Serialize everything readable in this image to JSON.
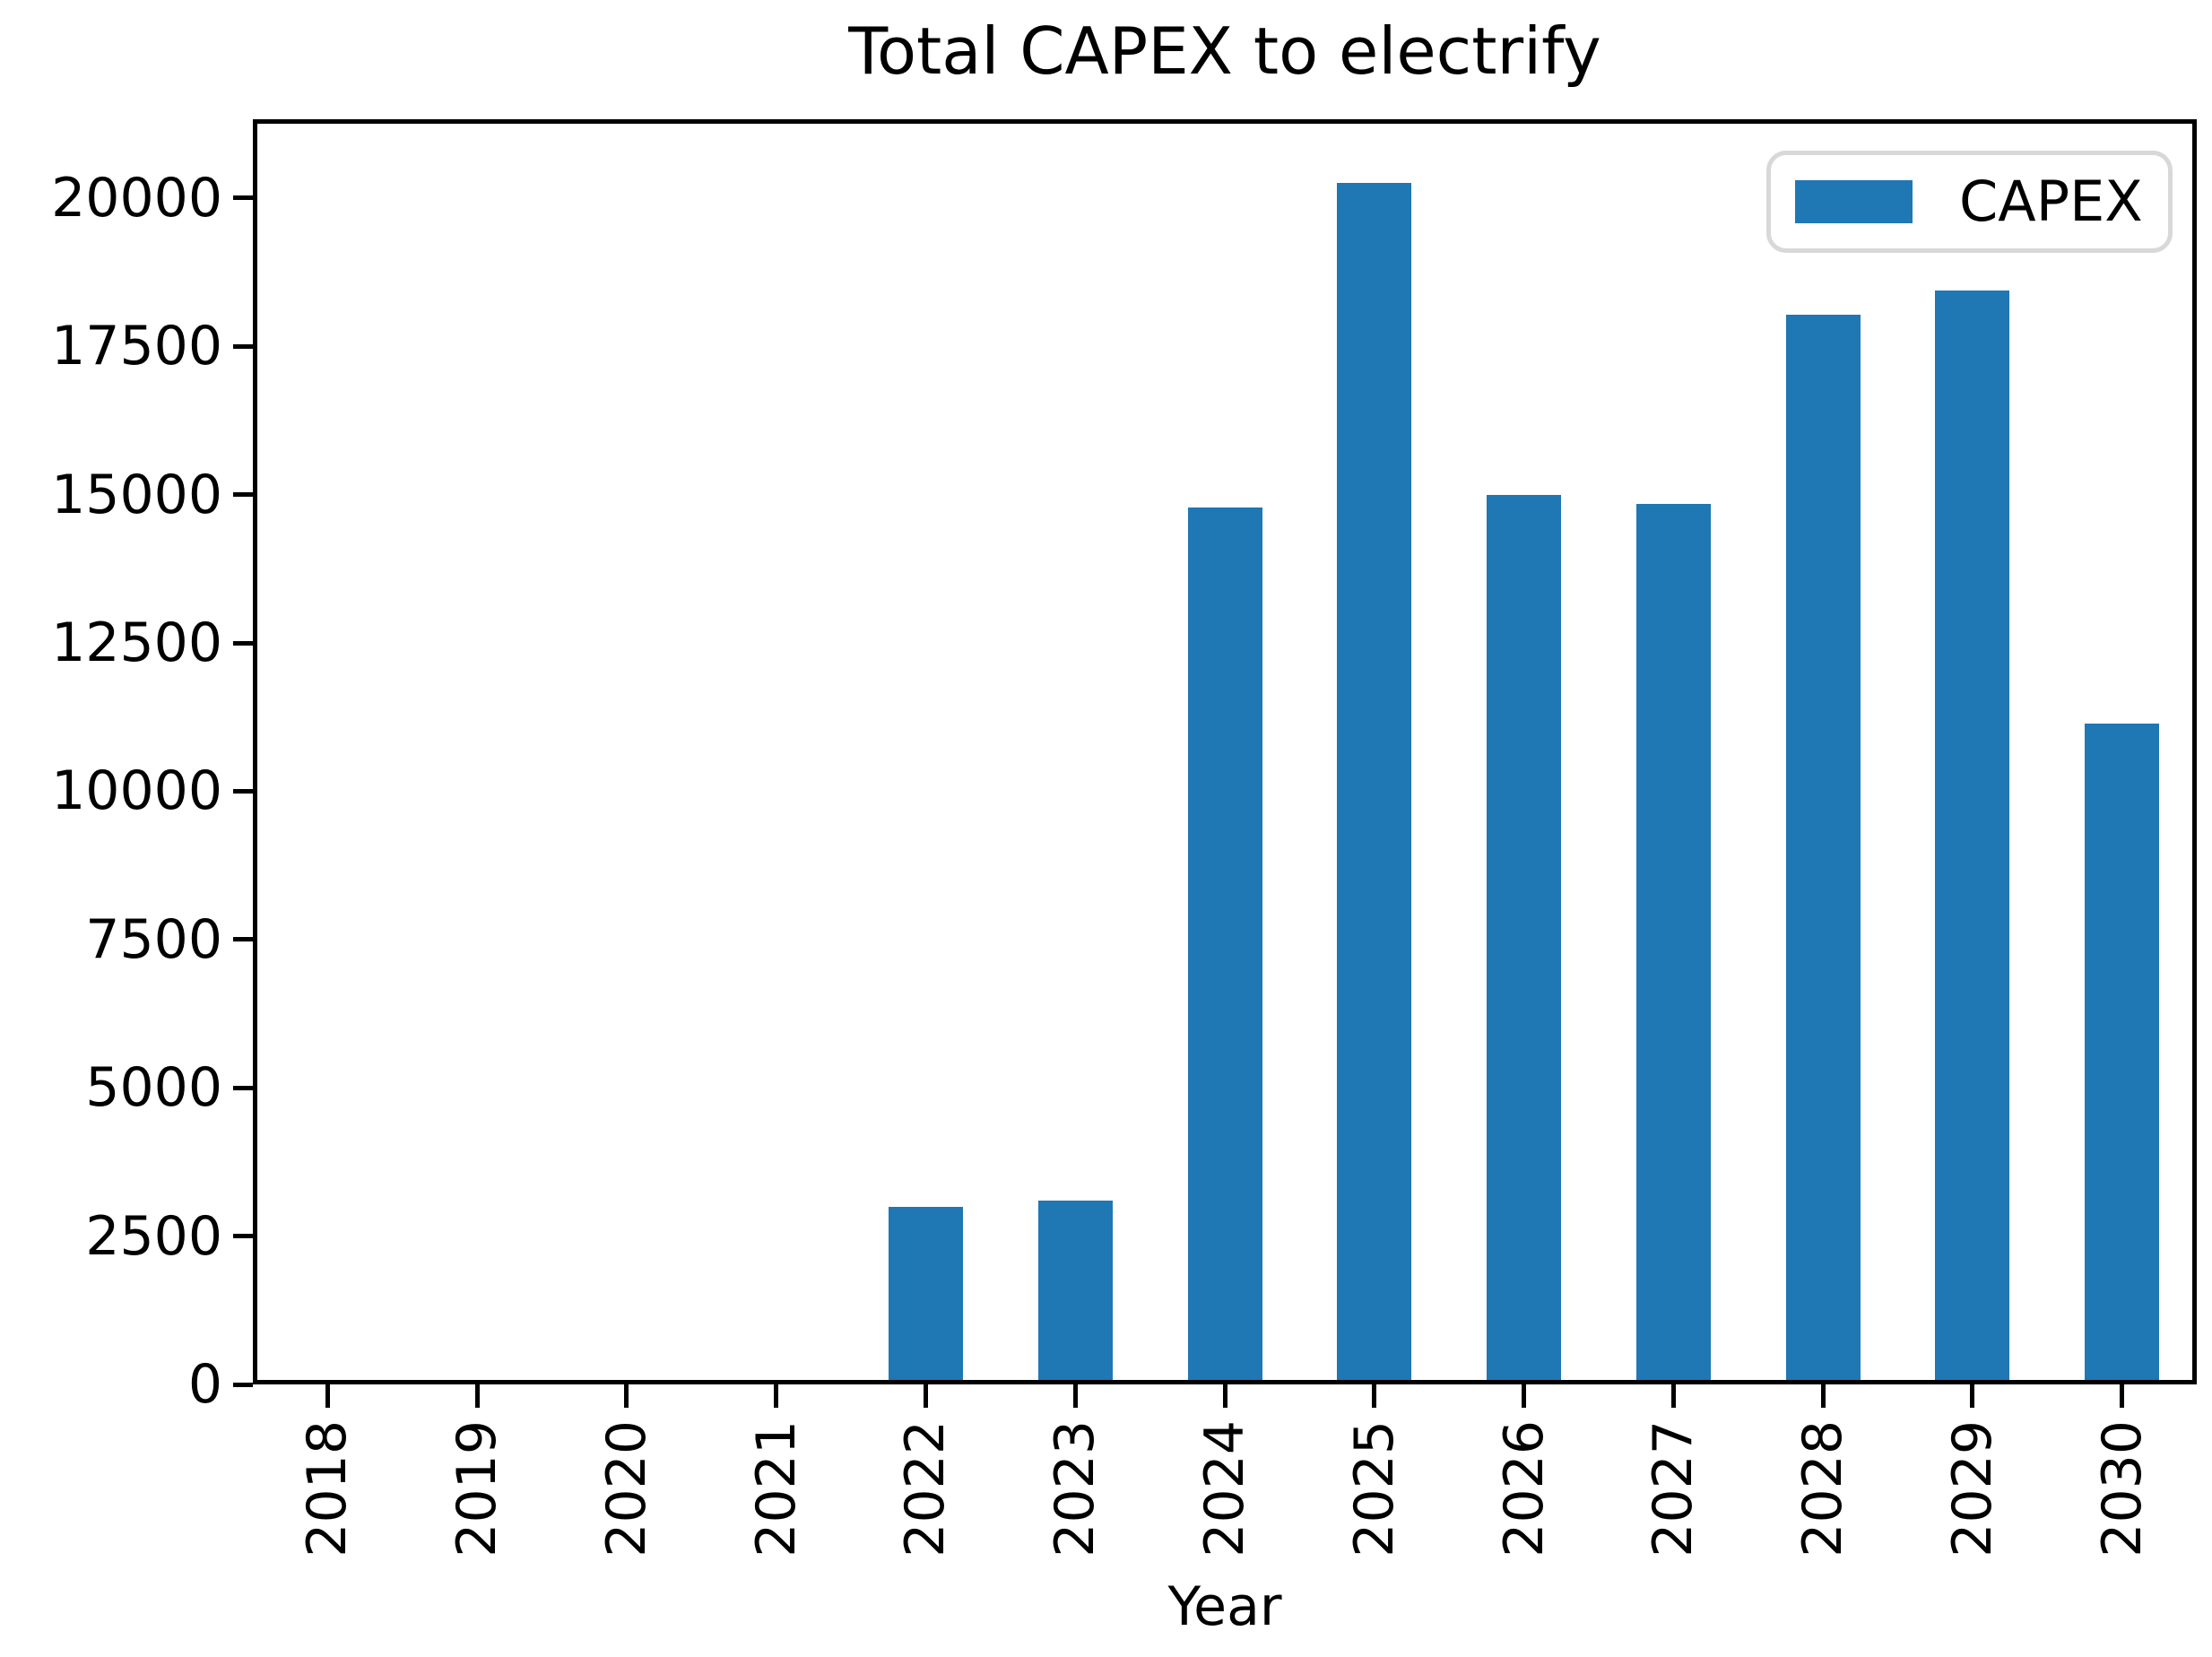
{
  "figure": {
    "background": "#ffffff"
  },
  "chart_data": {
    "type": "bar",
    "title": "Total CAPEX to electrify",
    "xlabel": "Year",
    "ylabel": "",
    "categories": [
      "2018",
      "2019",
      "2020",
      "2021",
      "2022",
      "2023",
      "2024",
      "2025",
      "2026",
      "2027",
      "2028",
      "2029",
      "2030"
    ],
    "series": [
      {
        "name": "CAPEX",
        "color": "#1f77b4",
        "values": [
          0,
          0,
          0,
          0,
          2990,
          3100,
          14780,
          20260,
          15000,
          14850,
          18030,
          18440,
          11140
        ]
      }
    ],
    "yticks": [
      0,
      2500,
      5000,
      7500,
      10000,
      12500,
      15000,
      17500,
      20000
    ],
    "ylim": [
      0,
      21330
    ],
    "grid": false,
    "x_tick_rotation": 90,
    "legend": {
      "visible": true,
      "position": "upper right",
      "entries": [
        "CAPEX"
      ]
    }
  }
}
